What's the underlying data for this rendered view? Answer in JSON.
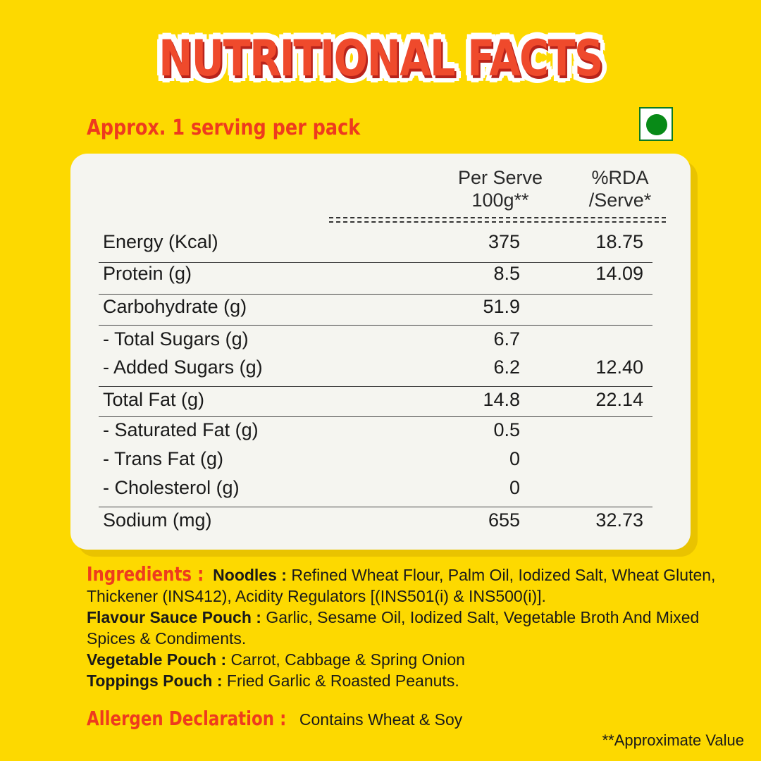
{
  "title": "NUTRITIONAL FACTS",
  "serving": "Approx. 1 serving per pack",
  "veg_mark": {
    "icon": "veg-symbol-icon",
    "color": "#088a17"
  },
  "table": {
    "headers": {
      "per_serve_1": "Per Serve",
      "per_serve_2": "100g**",
      "rda_1": "%RDA",
      "rda_2": "/Serve*"
    },
    "rows": [
      {
        "label": "Energy (Kcal)",
        "value": "375",
        "rda": "18.75"
      },
      {
        "label": "Protein (g)",
        "value": "8.5",
        "rda": "14.09"
      },
      {
        "label": "Carbohydrate (g)",
        "value": "51.9",
        "rda": ""
      },
      {
        "label": "- Total Sugars (g)",
        "value": "6.7",
        "rda": ""
      },
      {
        "label": "- Added Sugars (g)",
        "value": "6.2",
        "rda": "12.40"
      },
      {
        "label": "Total Fat (g)",
        "value": "14.8",
        "rda": "22.14"
      },
      {
        "label": "- Saturated Fat (g)",
        "value": "0.5",
        "rda": ""
      },
      {
        "label": "- Trans Fat (g)",
        "value": "0",
        "rda": ""
      },
      {
        "label": "- Cholesterol (g)",
        "value": "0",
        "rda": ""
      },
      {
        "label": "Sodium (mg)",
        "value": "655",
        "rda": "32.73"
      }
    ]
  },
  "ingredients": {
    "heading": "Ingredients :",
    "noodles_label": "Noodles :",
    "noodles": "Refined Wheat Flour, Palm Oil, Iodized Salt, Wheat Gluten, Thickener (INS412), Acidity Regulators [(INS501(i) & INS500(i)].",
    "sauce_label": "Flavour Sauce Pouch :",
    "sauce": "Garlic, Sesame Oil, Iodized Salt, Vegetable Broth And Mixed Spices & Condiments.",
    "veg_label": "Vegetable Pouch :",
    "veg": "Carrot, Cabbage & Spring Onion",
    "toppings_label": "Toppings Pouch :",
    "toppings": "Fried Garlic & Roasted Peanuts."
  },
  "allergen": {
    "heading": "Allergen Declaration :",
    "text": "Contains Wheat & Soy"
  },
  "footnote": "**Approximate Value"
}
